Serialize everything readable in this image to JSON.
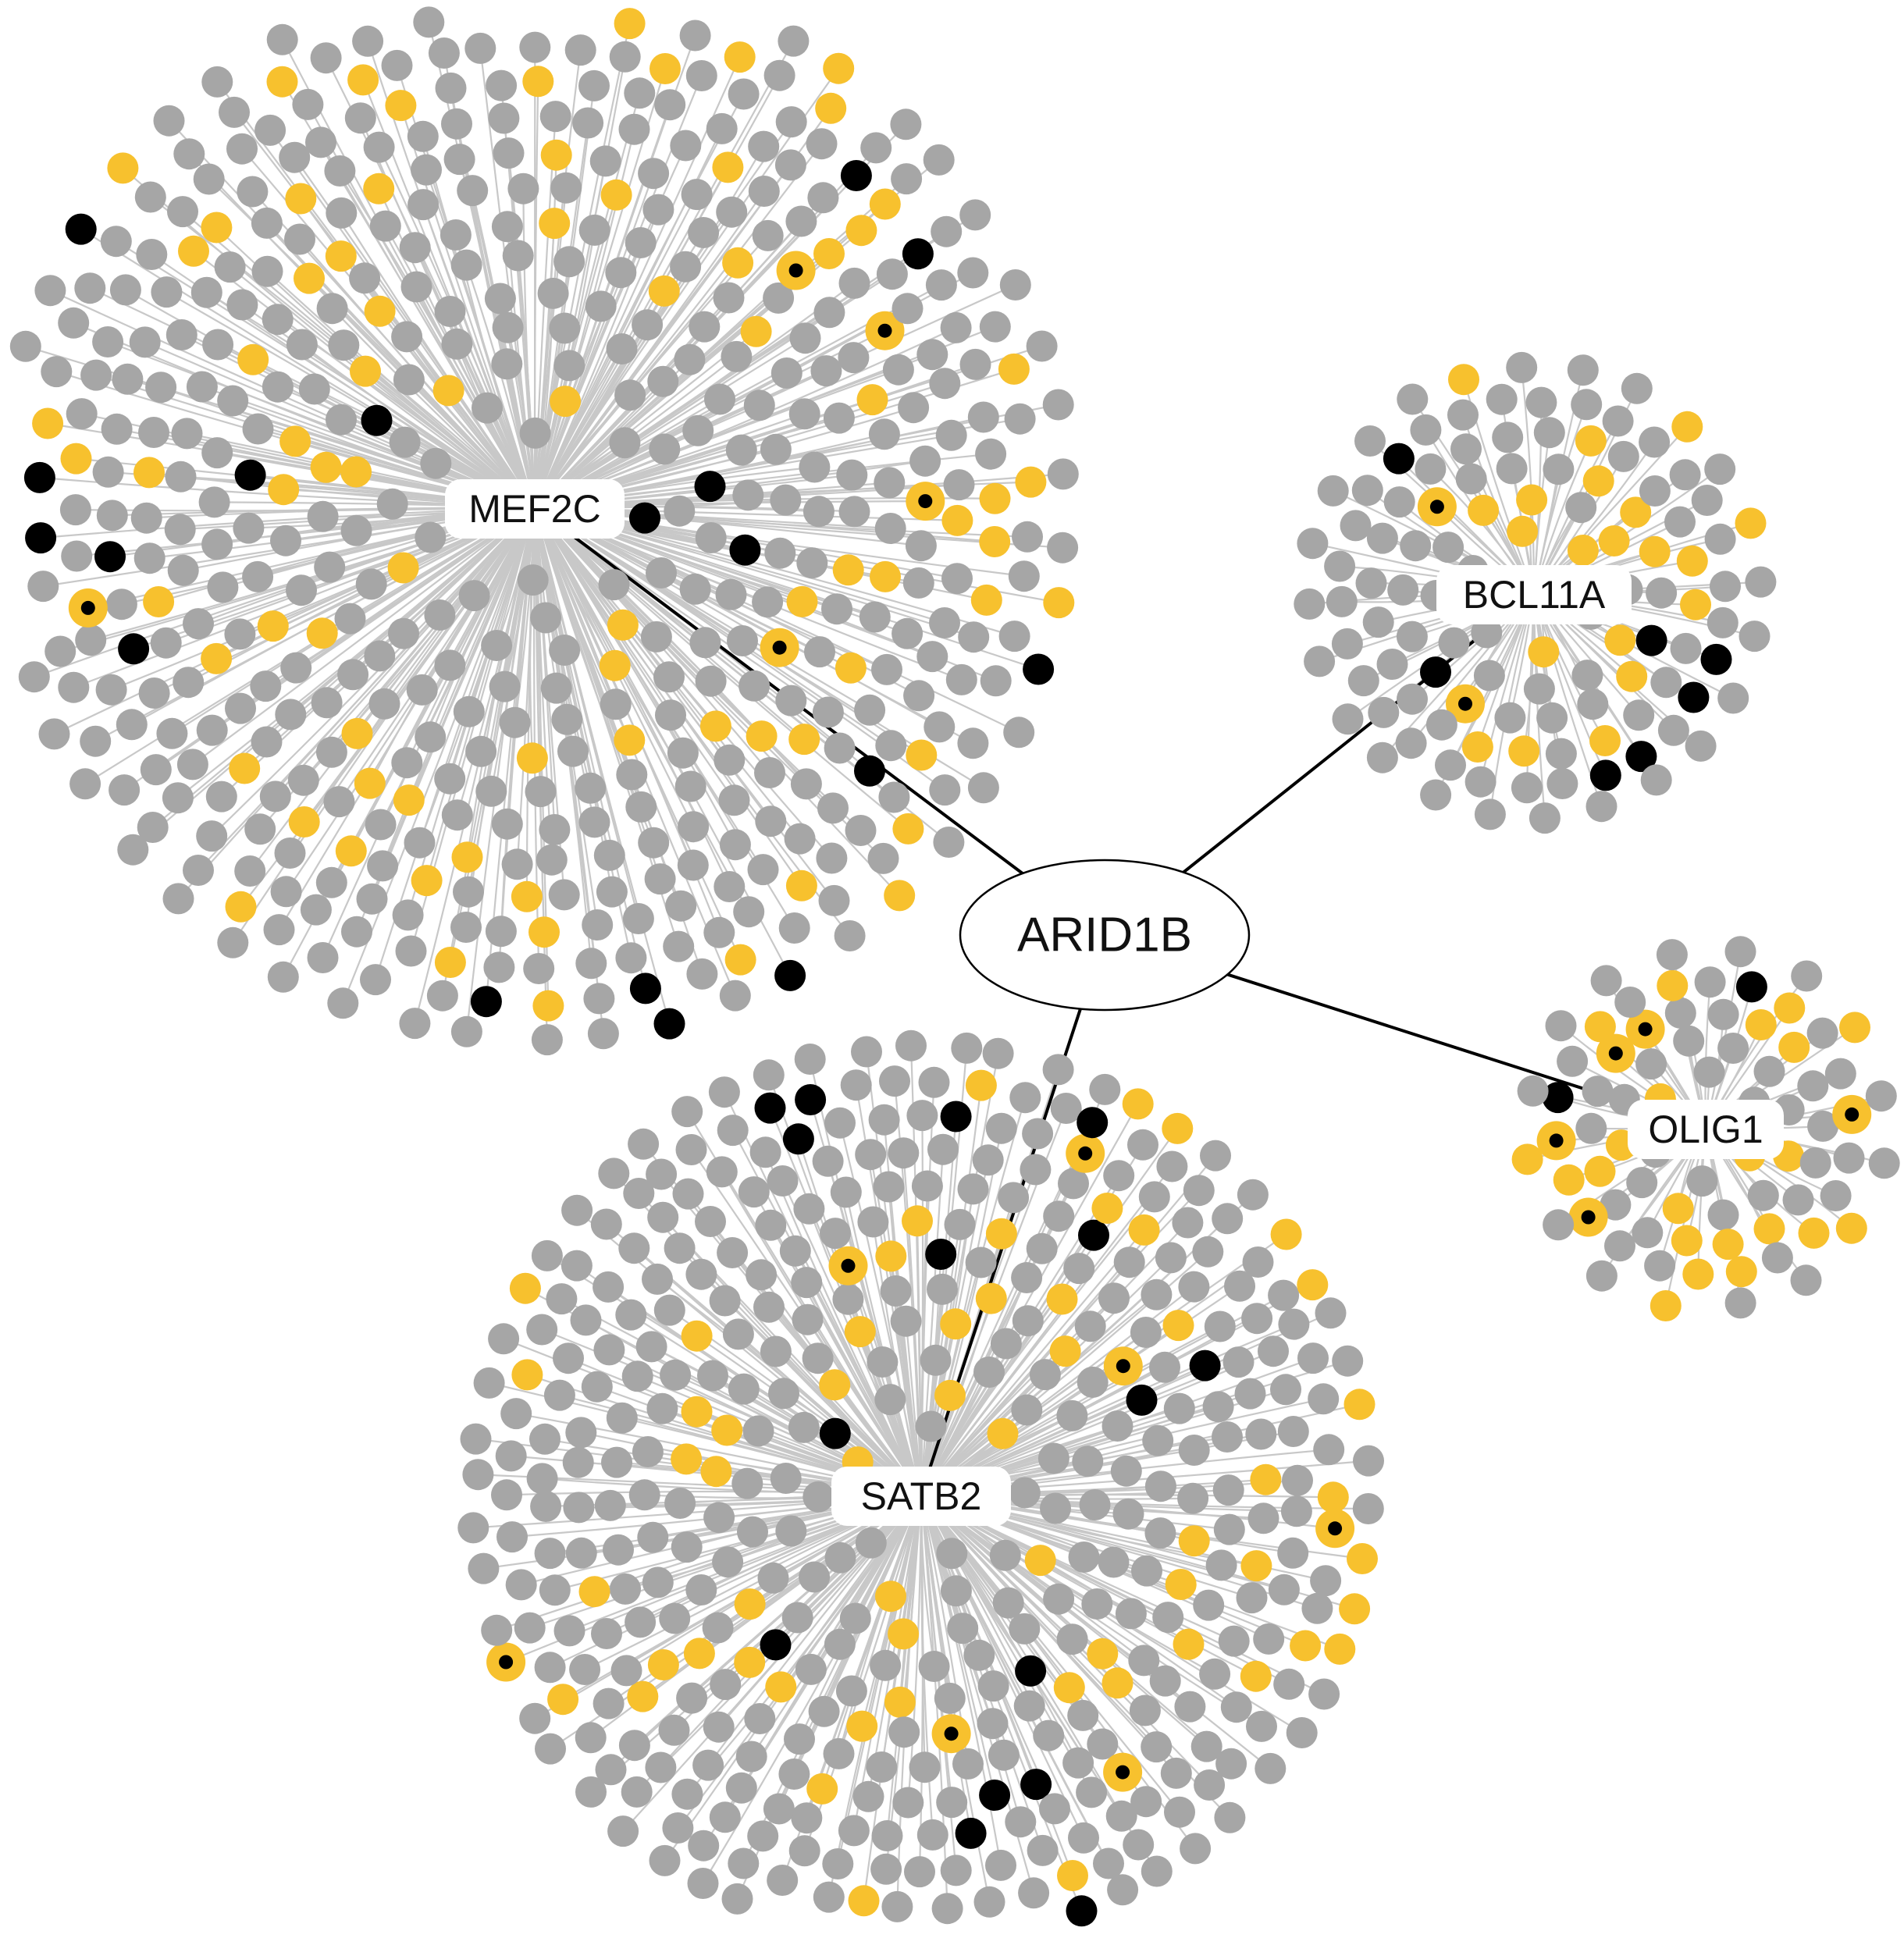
{
  "root": {
    "label": "ARID1B"
  },
  "hubs": [
    {
      "id": "mef2c",
      "label": "MEF2C",
      "rings": [
        4,
        9,
        14,
        20,
        26,
        31,
        37,
        42,
        48,
        54,
        59,
        64,
        58,
        50
      ],
      "yellow_fraction": 0.14,
      "black_fraction": 0.03,
      "ringed_fraction": 0.015
    },
    {
      "id": "bcl11a",
      "label": "BCL11A",
      "rings": [
        6,
        12,
        18,
        24,
        30,
        24
      ],
      "yellow_fraction": 0.18,
      "black_fraction": 0.04,
      "ringed_fraction": 0.025
    },
    {
      "id": "olig1",
      "label": "OLIG1",
      "rings": [
        6,
        12,
        18,
        22,
        16
      ],
      "yellow_fraction": 0.22,
      "black_fraction": 0.05,
      "ringed_fraction": 0.03
    },
    {
      "id": "satb2",
      "label": "SATB2",
      "rings": [
        5,
        10,
        16,
        22,
        28,
        34,
        40,
        46,
        52,
        58,
        62,
        58
      ],
      "yellow_fraction": 0.16,
      "black_fraction": 0.035,
      "ringed_fraction": 0.02
    }
  ],
  "colors": {
    "gray_node": "#a6a6a6",
    "yellow_node": "#f7c12e",
    "black_node": "#000000",
    "spoke": "#c8c8c8",
    "main_edge": "#000000",
    "label_bg": "#ffffff"
  }
}
